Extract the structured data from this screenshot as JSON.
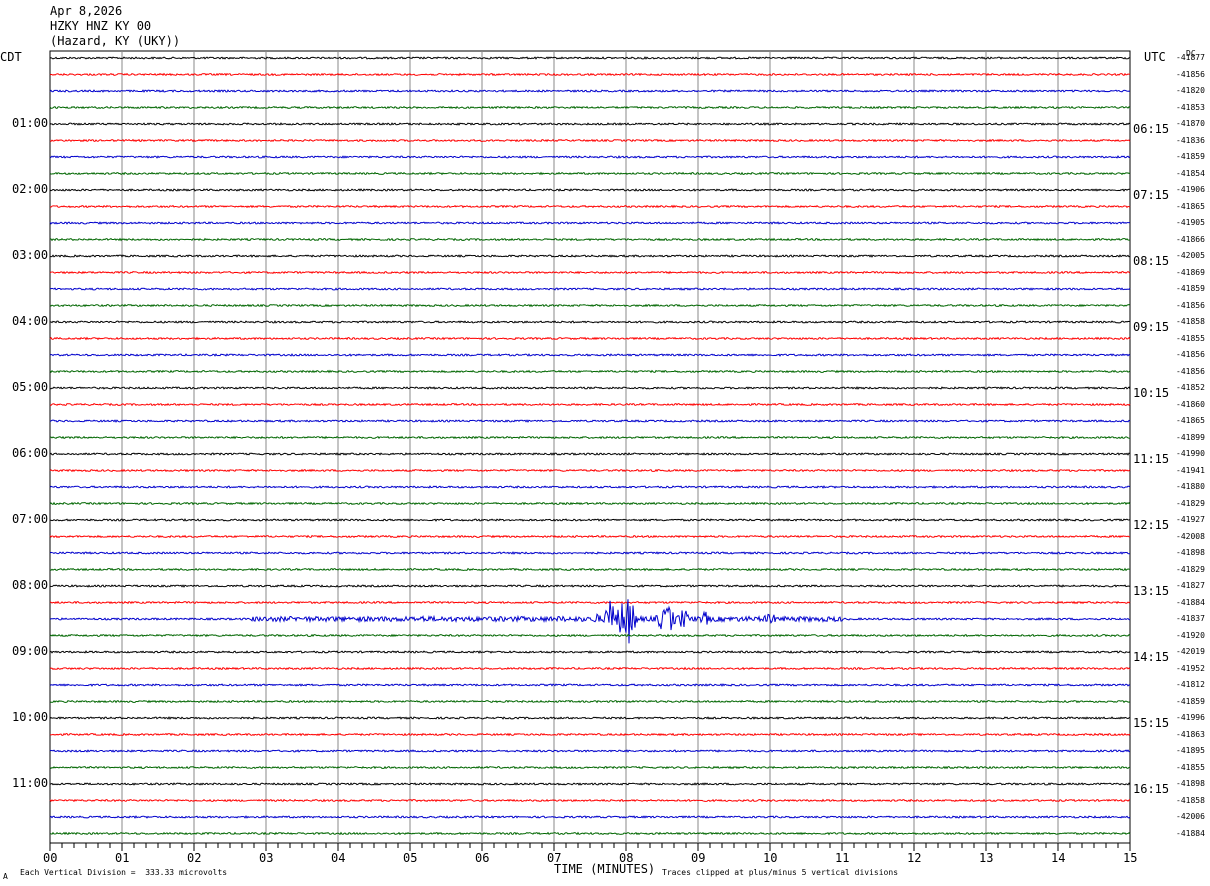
{
  "header": {
    "date": "Apr 8,2026",
    "station": "HZKY HNZ KY 00",
    "location": "(Hazard, KY (UKY))"
  },
  "left_axis_label": "CDT",
  "right_axis_label": "UTC",
  "dc_label": "DC",
  "x_axis_title": "TIME (MINUTES)",
  "footer": {
    "scale_note": "Each Vertical Division =  333.33 microvolts",
    "clip_note": "Traces clipped at plus/minus 5 vertical divisions",
    "corner_mark": "A"
  },
  "colors": {
    "cycle": [
      "#000000",
      "#ff0000",
      "#0000cc",
      "#006600"
    ],
    "grid": "#888888"
  },
  "chart_data": {
    "type": "line",
    "subtype": "helicorder",
    "x_range_minutes": [
      0,
      15
    ],
    "x_ticks": [
      "00",
      "01",
      "02",
      "03",
      "04",
      "05",
      "06",
      "07",
      "08",
      "09",
      "10",
      "11",
      "12",
      "13",
      "14",
      "15"
    ],
    "trace_minutes": 15,
    "trace_count": 48,
    "cdt_hour_labels": [
      "01:00",
      "02:00",
      "03:00",
      "04:00",
      "05:00",
      "06:00",
      "07:00",
      "08:00",
      "09:00",
      "10:00",
      "11:00"
    ],
    "utc_hour_labels": [
      "06:15",
      "07:15",
      "08:15",
      "09:15",
      "10:15",
      "11:15",
      "12:15",
      "13:15",
      "14:15",
      "15:15",
      "16:15"
    ],
    "dc_offsets": [
      "-41877",
      "-41856",
      "-41820",
      "-41853",
      "-41870",
      "-41836",
      "-41859",
      "-41854",
      "-41906",
      "-41865",
      "-41905",
      "-41866",
      "-42005",
      "-41869",
      "-41859",
      "-41856",
      "-41858",
      "-41855",
      "-41856",
      "-41856",
      "-41852",
      "-41860",
      "-41865",
      "-41899",
      "-41990",
      "-41941",
      "-41880",
      "-41829",
      "-41927",
      "-42008",
      "-41898",
      "-41829",
      "-41827",
      "-41884",
      "-41837",
      "-41920",
      "-42019",
      "-41952",
      "-41812",
      "-41859",
      "-41996",
      "-41863",
      "-41895",
      "-41855",
      "-41898",
      "-41858",
      "-42006",
      "-41884"
    ],
    "events": [
      {
        "trace": 34,
        "start_min": 2.8,
        "end_min": 11.0,
        "peak_min": 7.9,
        "note": "earthquake signal on blue trace"
      }
    ],
    "clipping_divisions": 5
  }
}
